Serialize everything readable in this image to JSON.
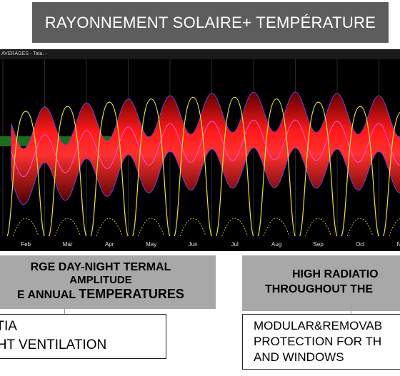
{
  "title": "RAYONNEMENT SOLAIRE+ TEMPÉRATURE",
  "chart": {
    "header": "AVERAGES - Tata. -",
    "months": [
      "Feb",
      "Mar",
      "Apr",
      "May",
      "Jun",
      "Jul",
      "Aug",
      "Sep",
      "Oct",
      "Nov"
    ]
  },
  "chart_data": {
    "type": "line",
    "categories": [
      "Feb",
      "Mar",
      "Apr",
      "May",
      "Jun",
      "Jul",
      "Aug",
      "Sep",
      "Oct",
      "Nov"
    ],
    "series_colors": {
      "temperature_band": "#d40000",
      "comfort_band": "#1d7a1d",
      "radiation": "#e8e23c"
    }
  },
  "left_grey": {
    "line1": "RGE DAY-NIGHT TERMAL",
    "line2": "AMPLITUDE",
    "line3_prefix": "E ANNUAL ",
    "line3_bold": "TEMPERATURES"
  },
  "left_white": {
    "line1": "RTIA",
    "line2": "GHT VENTILATION"
  },
  "right_grey": {
    "line1": "HIGH RADIATIO",
    "line2": "THROUGHOUT THE"
  },
  "right_white": {
    "line1": "MODULAR&REMOVAB",
    "line2": "PROTECTION FOR TH",
    "line3": "AND  WINDOWS"
  }
}
